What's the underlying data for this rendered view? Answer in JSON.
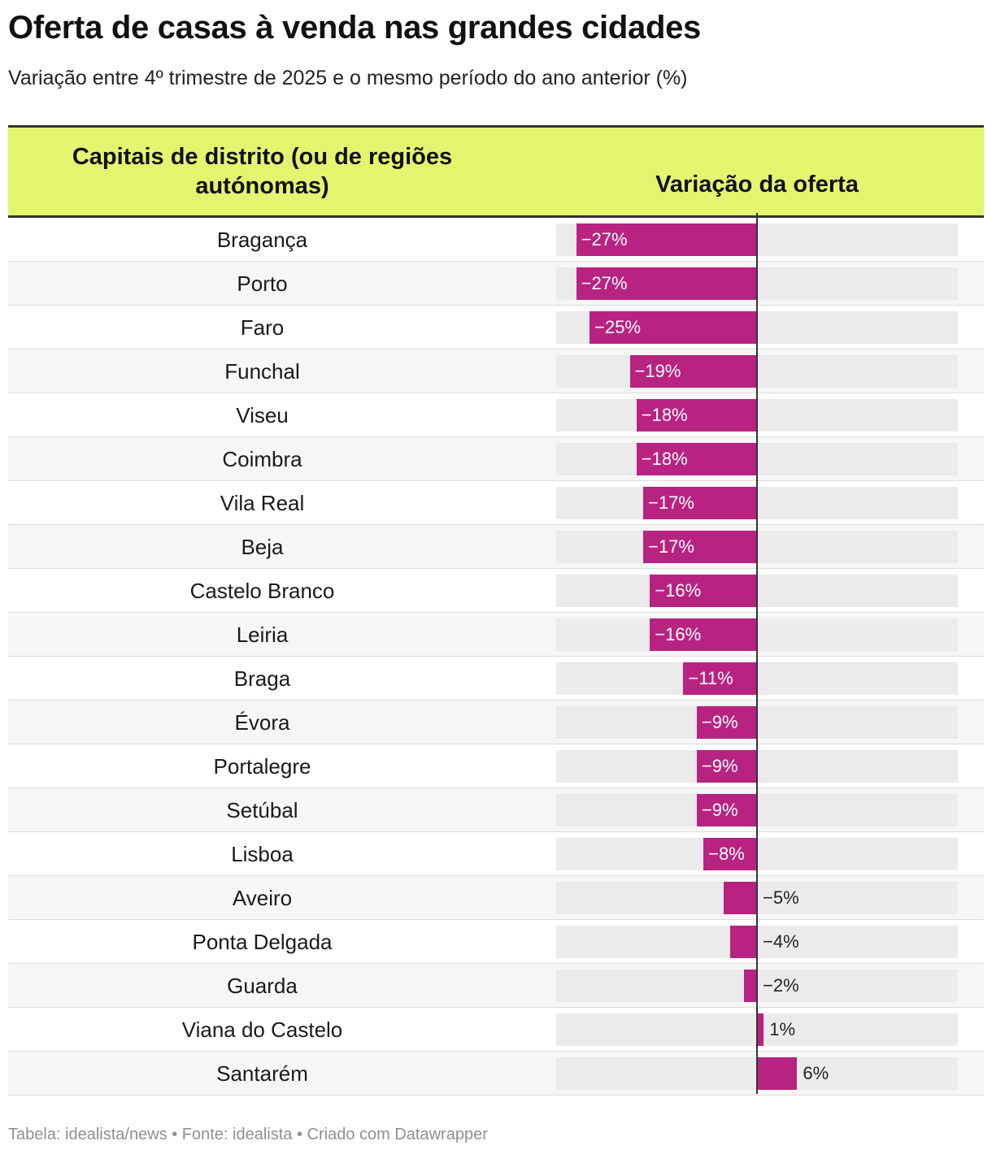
{
  "title": "Oferta de casas à venda nas grandes cidades",
  "subtitle": "Variação entre 4º trimestre de 2025 e o mesmo período do ano anterior (%)",
  "table": {
    "col_city": "Capitais de distrito (ou de regiões autónomas)",
    "col_var": "Variação da oferta"
  },
  "footer": "Tabela: idealista/news • Fonte: idealista • Criado com Datawrapper",
  "colors": {
    "bar": "#b82381",
    "header": "#e3f56f",
    "track": "#ebebeb"
  },
  "chart_data": {
    "type": "bar",
    "orientation": "horizontal",
    "title": "Oferta de casas à venda nas grandes cidades",
    "subtitle": "Variação entre 4º trimestre de 2025 e o mesmo período do ano anterior (%)",
    "xlim": [
      -30,
      30
    ],
    "categories": [
      "Bragança",
      "Porto",
      "Faro",
      "Funchal",
      "Viseu",
      "Coimbra",
      "Vila Real",
      "Beja",
      "Castelo Branco",
      "Leiria",
      "Braga",
      "Évora",
      "Portalegre",
      "Setúbal",
      "Lisboa",
      "Aveiro",
      "Ponta Delgada",
      "Guarda",
      "Viana do Castelo",
      "Santarém"
    ],
    "values": [
      -27,
      -27,
      -25,
      -19,
      -18,
      -18,
      -17,
      -17,
      -16,
      -16,
      -11,
      -9,
      -9,
      -9,
      -8,
      -5,
      -4,
      -2,
      1,
      6
    ],
    "labels": [
      "−27%",
      "−27%",
      "−25%",
      "−19%",
      "−18%",
      "−18%",
      "−17%",
      "−17%",
      "−16%",
      "−16%",
      "−11%",
      "−9%",
      "−9%",
      "−9%",
      "−8%",
      "−5%",
      "−4%",
      "−2%",
      "1%",
      "6%"
    ]
  }
}
